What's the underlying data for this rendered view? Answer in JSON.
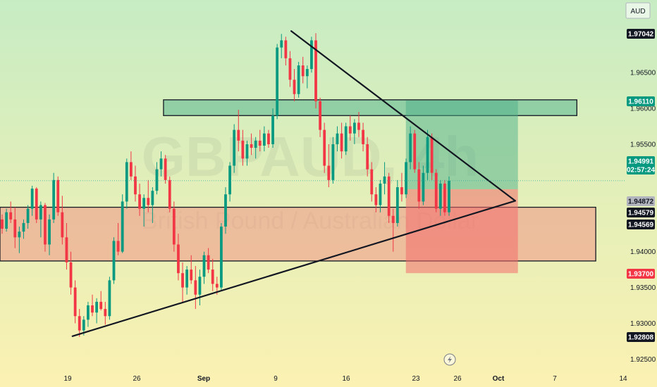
{
  "chart_data": {
    "type": "candlestick",
    "symbol": "GBPAUD",
    "interval": "4h",
    "instrument_name": "British Pound / Australian Dollar",
    "currency": "AUD",
    "x_ticks": [
      "19",
      "26",
      "Sep",
      "9",
      "16",
      "23",
      "26",
      "Oct",
      "7",
      "14"
    ],
    "y_ticks": [
      "1.96500",
      "1.96000",
      "1.95500",
      "1.94000",
      "1.93500",
      "1.93000",
      "1.92500"
    ],
    "ylim": [
      1.9228,
      1.9752
    ],
    "price_labels": [
      {
        "id": "high",
        "text": "1.97042",
        "value": 1.97042,
        "style": "dark"
      },
      {
        "id": "tp",
        "text": "1.96110",
        "value": 1.9611,
        "style": "green"
      },
      {
        "id": "last",
        "text": "1.94991",
        "value": 1.94991,
        "style": "green",
        "sub": "02:57:24"
      },
      {
        "id": "entry",
        "text": "1.94872",
        "value": 1.94872,
        "style": "gray"
      },
      {
        "id": "level1",
        "text": "1.94579",
        "value": 1.94579,
        "style": "dark"
      },
      {
        "id": "level2",
        "text": "1.94569",
        "value": 1.94569,
        "style": "dark"
      },
      {
        "id": "sl",
        "text": "1.93700",
        "value": 1.937,
        "style": "red"
      },
      {
        "id": "low",
        "text": "1.92808",
        "value": 1.92808,
        "style": "dark"
      }
    ],
    "zones": [
      {
        "id": "resistance-zone",
        "color": "#4caf8a",
        "x_start": 0.2615,
        "x_end": 0.9226,
        "y_top": 1.9612,
        "y_bottom": 1.959
      },
      {
        "id": "support-zone",
        "color": "#f28b82",
        "x_start": 0,
        "x_end": 0.9528,
        "y_top": 1.9462,
        "y_bottom": 1.9387
      }
    ],
    "position": {
      "x_start": 0.6491,
      "x_end": 0.8283,
      "target": 1.9611,
      "entry": 1.94872,
      "stop": 1.937
    },
    "trendlines": [
      {
        "id": "descending",
        "x1": 0.4657,
        "y1": 1.9708,
        "x2": 0.824,
        "y2": 1.9471
      },
      {
        "id": "ascending",
        "x1": 0.1159,
        "y1": 1.9282,
        "x2": 0.824,
        "y2": 1.9471
      }
    ],
    "candles": [
      [
        1.9445,
        1.9452,
        1.9425,
        1.9432
      ],
      [
        1.9432,
        1.946,
        1.9428,
        1.9455
      ],
      [
        1.9455,
        1.947,
        1.944,
        1.9445
      ],
      [
        1.9445,
        1.9462,
        1.9405,
        1.942
      ],
      [
        1.942,
        1.9435,
        1.9398,
        1.9428
      ],
      [
        1.9428,
        1.9445,
        1.9418,
        1.944
      ],
      [
        1.944,
        1.9465,
        1.9432,
        1.946
      ],
      [
        1.946,
        1.9492,
        1.945,
        1.9488
      ],
      [
        1.9488,
        1.949,
        1.944,
        1.9445
      ],
      [
        1.9445,
        1.947,
        1.942,
        1.9465
      ],
      [
        1.9465,
        1.9468,
        1.94,
        1.941
      ],
      [
        1.941,
        1.9452,
        1.9395,
        1.9445
      ],
      [
        1.9445,
        1.951,
        1.944,
        1.95
      ],
      [
        1.95,
        1.9505,
        1.945,
        1.9455
      ],
      [
        1.9455,
        1.9478,
        1.941,
        1.942
      ],
      [
        1.942,
        1.944,
        1.9375,
        1.9385
      ],
      [
        1.9385,
        1.94,
        1.934,
        1.935
      ],
      [
        1.935,
        1.936,
        1.93,
        1.931
      ],
      [
        1.931,
        1.932,
        1.9281,
        1.929
      ],
      [
        1.929,
        1.931,
        1.9283,
        1.9305
      ],
      [
        1.9305,
        1.933,
        1.9295,
        1.9325
      ],
      [
        1.9325,
        1.934,
        1.931,
        1.9315
      ],
      [
        1.9315,
        1.9335,
        1.93,
        1.933
      ],
      [
        1.933,
        1.9345,
        1.9318,
        1.932
      ],
      [
        1.932,
        1.933,
        1.9298,
        1.931
      ],
      [
        1.931,
        1.9365,
        1.9305,
        1.936
      ],
      [
        1.936,
        1.942,
        1.9355,
        1.9415
      ],
      [
        1.9415,
        1.944,
        1.9395,
        1.94
      ],
      [
        1.94,
        1.948,
        1.9398,
        1.947
      ],
      [
        1.947,
        1.953,
        1.946,
        1.9525
      ],
      [
        1.9525,
        1.954,
        1.95,
        1.9505
      ],
      [
        1.9505,
        1.952,
        1.947,
        1.948
      ],
      [
        1.948,
        1.9495,
        1.945,
        1.946
      ],
      [
        1.946,
        1.948,
        1.9435,
        1.9475
      ],
      [
        1.9475,
        1.95,
        1.9455,
        1.9465
      ],
      [
        1.9465,
        1.949,
        1.944,
        1.9485
      ],
      [
        1.9485,
        1.9525,
        1.948,
        1.9515
      ],
      [
        1.9515,
        1.954,
        1.9505,
        1.953
      ],
      [
        1.953,
        1.9535,
        1.9495,
        1.95
      ],
      [
        1.95,
        1.9505,
        1.9455,
        1.946
      ],
      [
        1.946,
        1.947,
        1.94,
        1.941
      ],
      [
        1.941,
        1.9425,
        1.936,
        1.937
      ],
      [
        1.937,
        1.9385,
        1.933,
        1.935
      ],
      [
        1.935,
        1.938,
        1.934,
        1.9375
      ],
      [
        1.9375,
        1.9395,
        1.9355,
        1.936
      ],
      [
        1.936,
        1.938,
        1.932,
        1.934
      ],
      [
        1.934,
        1.9375,
        1.9325,
        1.9365
      ],
      [
        1.9365,
        1.94,
        1.9355,
        1.9395
      ],
      [
        1.9395,
        1.9405,
        1.937,
        1.9375
      ],
      [
        1.9375,
        1.939,
        1.9345,
        1.9355
      ],
      [
        1.9355,
        1.9365,
        1.934,
        1.935
      ],
      [
        1.935,
        1.944,
        1.9345,
        1.9435
      ],
      [
        1.9435,
        1.949,
        1.9425,
        1.948
      ],
      [
        1.948,
        1.9525,
        1.947,
        1.952
      ],
      [
        1.952,
        1.9578,
        1.951,
        1.957
      ],
      [
        1.957,
        1.9598,
        1.954,
        1.9555
      ],
      [
        1.9555,
        1.957,
        1.952,
        1.953
      ],
      [
        1.953,
        1.9555,
        1.952,
        1.955
      ],
      [
        1.955,
        1.9565,
        1.9535,
        1.9545
      ],
      [
        1.9545,
        1.956,
        1.953,
        1.9555
      ],
      [
        1.9555,
        1.957,
        1.954,
        1.9548
      ],
      [
        1.9548,
        1.9575,
        1.954,
        1.9565
      ],
      [
        1.9565,
        1.957,
        1.9545,
        1.955
      ],
      [
        1.955,
        1.96,
        1.9545,
        1.959
      ],
      [
        1.959,
        1.969,
        1.9585,
        1.9685
      ],
      [
        1.9685,
        1.9704,
        1.967,
        1.9695
      ],
      [
        1.9695,
        1.97,
        1.966,
        1.967
      ],
      [
        1.967,
        1.968,
        1.963,
        1.964
      ],
      [
        1.964,
        1.9655,
        1.961,
        1.962
      ],
      [
        1.962,
        1.9665,
        1.9615,
        1.966
      ],
      [
        1.966,
        1.9672,
        1.9635,
        1.9645
      ],
      [
        1.9645,
        1.966,
        1.9628,
        1.9655
      ],
      [
        1.9655,
        1.97,
        1.965,
        1.9695
      ],
      [
        1.9695,
        1.9705,
        1.96,
        1.961
      ],
      [
        1.961,
        1.9615,
        1.956,
        1.957
      ],
      [
        1.957,
        1.958,
        1.951,
        1.952
      ],
      [
        1.952,
        1.955,
        1.949,
        1.95
      ],
      [
        1.95,
        1.956,
        1.9495,
        1.955
      ],
      [
        1.955,
        1.9575,
        1.954,
        1.9565
      ],
      [
        1.9565,
        1.958,
        1.953,
        1.954
      ],
      [
        1.954,
        1.958,
        1.9535,
        1.9575
      ],
      [
        1.9575,
        1.959,
        1.9555,
        1.9565
      ],
      [
        1.9565,
        1.9585,
        1.955,
        1.958
      ],
      [
        1.958,
        1.9595,
        1.956,
        1.957
      ],
      [
        1.957,
        1.958,
        1.954,
        1.955
      ],
      [
        1.955,
        1.956,
        1.9505,
        1.9515
      ],
      [
        1.9515,
        1.9525,
        1.947,
        1.948
      ],
      [
        1.948,
        1.949,
        1.9455,
        1.9465
      ],
      [
        1.9465,
        1.95,
        1.9455,
        1.9495
      ],
      [
        1.9495,
        1.9525,
        1.948,
        1.9505
      ],
      [
        1.9505,
        1.951,
        1.944,
        1.945
      ],
      [
        1.945,
        1.946,
        1.94,
        1.944
      ],
      [
        1.944,
        1.95,
        1.9435,
        1.949
      ],
      [
        1.949,
        1.951,
        1.947,
        1.948
      ],
      [
        1.948,
        1.953,
        1.9475,
        1.9525
      ],
      [
        1.9525,
        1.9575,
        1.9515,
        1.9565
      ],
      [
        1.9565,
        1.957,
        1.951,
        1.9515
      ],
      [
        1.9515,
        1.9525,
        1.946,
        1.947
      ],
      [
        1.947,
        1.952,
        1.9465,
        1.951
      ],
      [
        1.951,
        1.957,
        1.95,
        1.956
      ],
      [
        1.956,
        1.9565,
        1.95,
        1.951
      ],
      [
        1.951,
        1.9515,
        1.9455,
        1.946
      ],
      [
        1.946,
        1.95,
        1.945,
        1.9495
      ],
      [
        1.9495,
        1.95,
        1.945,
        1.9455
      ],
      [
        1.9455,
        1.9505,
        1.945,
        1.9499
      ]
    ]
  }
}
